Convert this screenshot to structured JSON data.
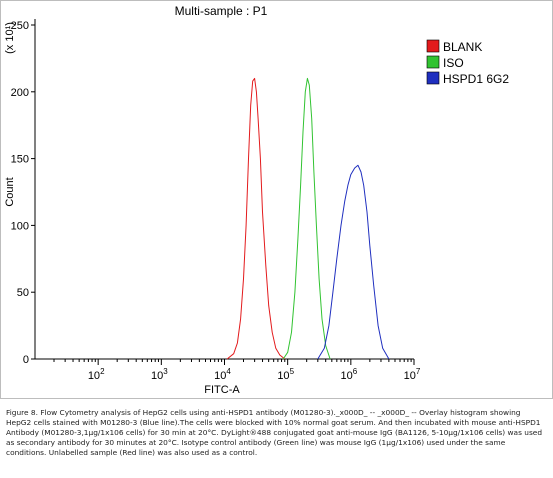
{
  "chart_data": {
    "type": "histogram",
    "title": "Multi-sample : P1",
    "xlabel": "FITC-A",
    "ylabel": "Count",
    "y_multiplier_label": "(x 10¹)",
    "x_scale": "log",
    "xlim": [
      10,
      10000000
    ],
    "ylim": [
      0,
      250
    ],
    "y_ticks": [
      0,
      50,
      100,
      150,
      200,
      250
    ],
    "y_tick_labels": [
      "0",
      "50",
      "100",
      "150",
      "200",
      "250"
    ],
    "x_ticks": [
      100,
      1000,
      10000,
      100000,
      1000000,
      10000000
    ],
    "x_tick_labels": [
      {
        "base": "10",
        "exp": "2"
      },
      {
        "base": "10",
        "exp": "3"
      },
      {
        "base": "10",
        "exp": "4"
      },
      {
        "base": "10",
        "exp": "5"
      },
      {
        "base": "10",
        "exp": "6"
      },
      {
        "base": "10",
        "exp": "7"
      }
    ],
    "legend_position": "right",
    "grid": false,
    "series": [
      {
        "name": "BLANK",
        "color": "#e31a1c",
        "x": [
          11000,
          14000,
          16000,
          18000,
          20000,
          22000,
          24000,
          26000,
          28000,
          30000,
          32000,
          34000,
          37000,
          40000,
          45000,
          50000,
          57000,
          65000,
          75000,
          90000
        ],
        "y": [
          0,
          4,
          12,
          30,
          60,
          100,
          150,
          190,
          208,
          210,
          200,
          180,
          150,
          110,
          70,
          40,
          20,
          8,
          3,
          0
        ]
      },
      {
        "name": "ISO",
        "color": "#31c331",
        "x": [
          85000,
          100000,
          115000,
          130000,
          145000,
          160000,
          175000,
          190000,
          205000,
          220000,
          240000,
          260000,
          285000,
          315000,
          350000,
          400000,
          470000
        ],
        "y": [
          0,
          5,
          20,
          50,
          90,
          130,
          170,
          200,
          210,
          205,
          180,
          140,
          100,
          60,
          30,
          10,
          0
        ]
      },
      {
        "name": "HSPD1 6G2",
        "color": "#1f2fbf",
        "x": [
          300000,
          380000,
          450000,
          520000,
          600000,
          700000,
          800000,
          900000,
          1000000,
          1150000,
          1300000,
          1450000,
          1600000,
          1800000,
          2000000,
          2300000,
          2700000,
          3200000,
          4000000
        ],
        "y": [
          0,
          8,
          25,
          50,
          75,
          100,
          118,
          130,
          138,
          143,
          145,
          140,
          130,
          110,
          85,
          55,
          25,
          8,
          0
        ]
      }
    ]
  },
  "caption": "Figure 8. Flow Cytometry analysis of HepG2 cells using anti-HSPD1 antibody (M01280-3)._x000D_ -- _x000D_ -- Overlay histogram showing HepG2 cells stained with M01280-3 (Blue line).The cells were blocked with 10% normal goat serum. And then incubated with mouse anti-HSPD1 Antibody (M01280-3,1µg/1x106 cells) for 30 min at 20°C. DyLight®488 conjugated goat anti-mouse IgG (BA1126, 5-10µg/1x106 cells) was used as secondary antibody for 30 minutes at 20°C. Isotype control antibody (Green line) was mouse IgG (1µg/1x106) used under the same conditions. Unlabelled sample (Red line) was also used as a control."
}
